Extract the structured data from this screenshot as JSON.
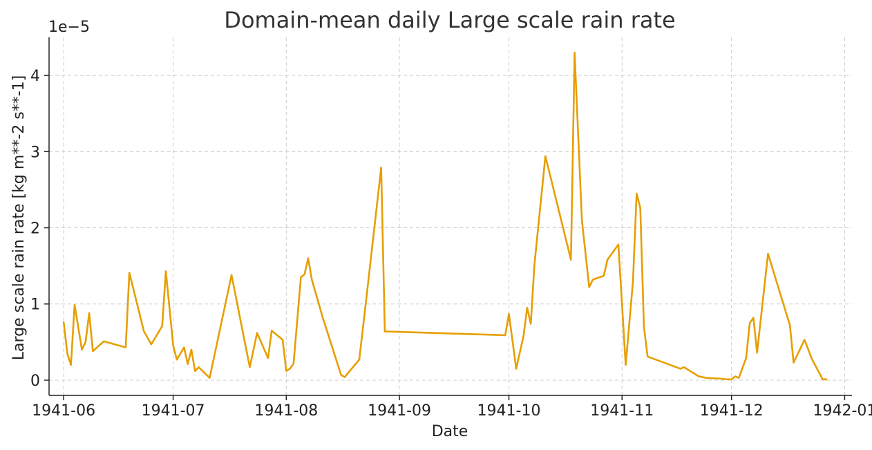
{
  "chart_data": {
    "type": "line",
    "title": "Domain-mean daily Large scale rain rate",
    "xlabel": "Date",
    "ylabel": "Large scale rain rate [kg m**-2 s**-1]",
    "y_offset_label": "1e−5",
    "y_scale": 1e-05,
    "xlim": [
      "1941-05-28",
      "1942-01-03"
    ],
    "ylim": [
      -0.2,
      4.5
    ],
    "x_ticks": [
      "1941-06-01",
      "1941-07-01",
      "1941-08-01",
      "1941-09-01",
      "1941-10-01",
      "1941-11-01",
      "1941-12-01",
      "1942-01-01"
    ],
    "x_tick_labels": [
      "1941-06",
      "1941-07",
      "1941-08",
      "1941-09",
      "1941-10",
      "1941-11",
      "1941-12",
      "1942-01"
    ],
    "y_ticks": [
      0,
      1,
      2,
      3,
      4
    ],
    "y_tick_labels": [
      "0",
      "1",
      "2",
      "3",
      "4"
    ],
    "grid": true,
    "line_color": "#e69f00",
    "series": [
      {
        "x": [
          "1941-06-01",
          "1941-06-02",
          "1941-06-03",
          "1941-06-04",
          "1941-06-06",
          "1941-06-07",
          "1941-06-08",
          "1941-06-09",
          "1941-06-12",
          "1941-06-18",
          "1941-06-19",
          "1941-06-23",
          "1941-06-25",
          "1941-06-28",
          "1941-06-29",
          "1941-07-01",
          "1941-07-02",
          "1941-07-04",
          "1941-07-05",
          "1941-07-06",
          "1941-07-07",
          "1941-07-08",
          "1941-07-11",
          "1941-07-17",
          "1941-07-22",
          "1941-07-24",
          "1941-07-27",
          "1941-07-28",
          "1941-07-31",
          "1941-08-01",
          "1941-08-02",
          "1941-08-03",
          "1941-08-05",
          "1941-08-06",
          "1941-08-07",
          "1941-08-08",
          "1941-08-11",
          "1941-08-16",
          "1941-08-17",
          "1941-08-21",
          "1941-08-23",
          "1941-08-27",
          "1941-08-28",
          "1941-09-30",
          "1941-10-01",
          "1941-10-03",
          "1941-10-05",
          "1941-10-06",
          "1941-10-07",
          "1941-10-08",
          "1941-10-11",
          "1941-10-18",
          "1941-10-19",
          "1941-10-21",
          "1941-10-23",
          "1941-10-24",
          "1941-10-27",
          "1941-10-28",
          "1941-10-31",
          "1941-11-02",
          "1941-11-04",
          "1941-11-05",
          "1941-11-06",
          "1941-11-07",
          "1941-11-08",
          "1941-11-17",
          "1941-11-18",
          "1941-11-22",
          "1941-11-24",
          "1941-11-28",
          "1941-11-30",
          "1941-12-01",
          "1941-12-02",
          "1941-12-03",
          "1941-12-05",
          "1941-12-06",
          "1941-12-07",
          "1941-12-08",
          "1941-12-11",
          "1941-12-17",
          "1941-12-18",
          "1941-12-21",
          "1941-12-23",
          "1941-12-26",
          "1941-12-27"
        ],
        "values": [
          0.76,
          0.35,
          0.2,
          0.99,
          0.4,
          0.5,
          0.88,
          0.38,
          0.51,
          0.43,
          1.41,
          0.64,
          0.47,
          0.71,
          1.43,
          0.46,
          0.27,
          0.43,
          0.21,
          0.4,
          0.12,
          0.17,
          0.03,
          1.38,
          0.17,
          0.62,
          0.29,
          0.65,
          0.53,
          0.12,
          0.15,
          0.22,
          1.35,
          1.39,
          1.6,
          1.32,
          0.82,
          0.07,
          0.04,
          0.27,
          1.1,
          2.79,
          0.64,
          0.59,
          0.87,
          0.15,
          0.58,
          0.95,
          0.74,
          1.52,
          2.94,
          1.58,
          4.3,
          2.1,
          1.22,
          1.32,
          1.37,
          1.58,
          1.78,
          0.2,
          1.3,
          2.45,
          2.26,
          0.7,
          0.31,
          0.15,
          0.17,
          0.05,
          0.03,
          0.02,
          0.01,
          0.01,
          0.05,
          0.03,
          0.29,
          0.75,
          0.82,
          0.36,
          1.66,
          0.72,
          0.23,
          0.53,
          0.28,
          0.01,
          0.01
        ]
      }
    ]
  }
}
